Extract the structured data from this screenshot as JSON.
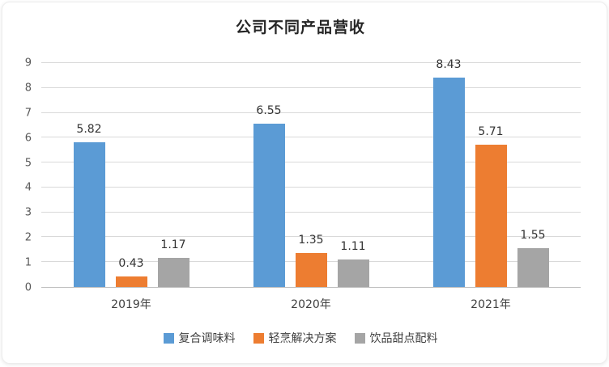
{
  "chart_data": {
    "type": "bar",
    "title": "公司不同产品营收",
    "categories": [
      "2019年",
      "2020年",
      "2021年"
    ],
    "series": [
      {
        "name": "复合调味料",
        "color": "#5B9BD5",
        "values": [
          5.82,
          6.55,
          8.43
        ]
      },
      {
        "name": "轻烹解决方案",
        "color": "#ED7D31",
        "values": [
          0.43,
          1.35,
          5.71
        ]
      },
      {
        "name": "饮品甜点配料",
        "color": "#A5A5A5",
        "values": [
          1.17,
          1.11,
          1.55
        ]
      }
    ],
    "ylim": [
      0,
      9
    ],
    "yticks": [
      0,
      1,
      2,
      3,
      4,
      5,
      6,
      7,
      8,
      9
    ],
    "grid": true,
    "legend_position": "bottom",
    "colors": {
      "gridline": "#d9d9d9",
      "axis_line": "#bfbfbf",
      "tick_text": "#595959",
      "label_text": "#333333"
    }
  }
}
